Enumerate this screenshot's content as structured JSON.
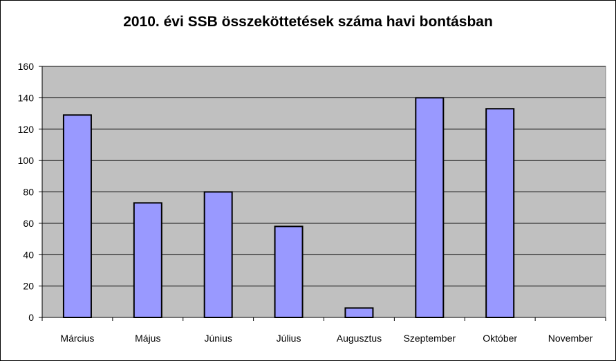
{
  "chart_data": {
    "type": "bar",
    "title": "2010. évi SSB összeköttetések száma havi bontásban",
    "xlabel": "",
    "ylabel": "",
    "categories": [
      "Március",
      "Május",
      "Június",
      "Július",
      "Augusztus",
      "Szeptember",
      "Október",
      "November"
    ],
    "values": [
      129,
      73,
      80,
      58,
      6,
      140,
      133,
      0
    ],
    "ylim": [
      0,
      160
    ],
    "yticks": [
      0,
      20,
      40,
      60,
      80,
      100,
      120,
      140,
      160
    ],
    "grid": true,
    "legend": "none",
    "colors": {
      "bar_fill": "#9999ff",
      "bar_stroke": "#000000",
      "plot_background": "#c0c0c0",
      "gridline": "#000000"
    }
  }
}
